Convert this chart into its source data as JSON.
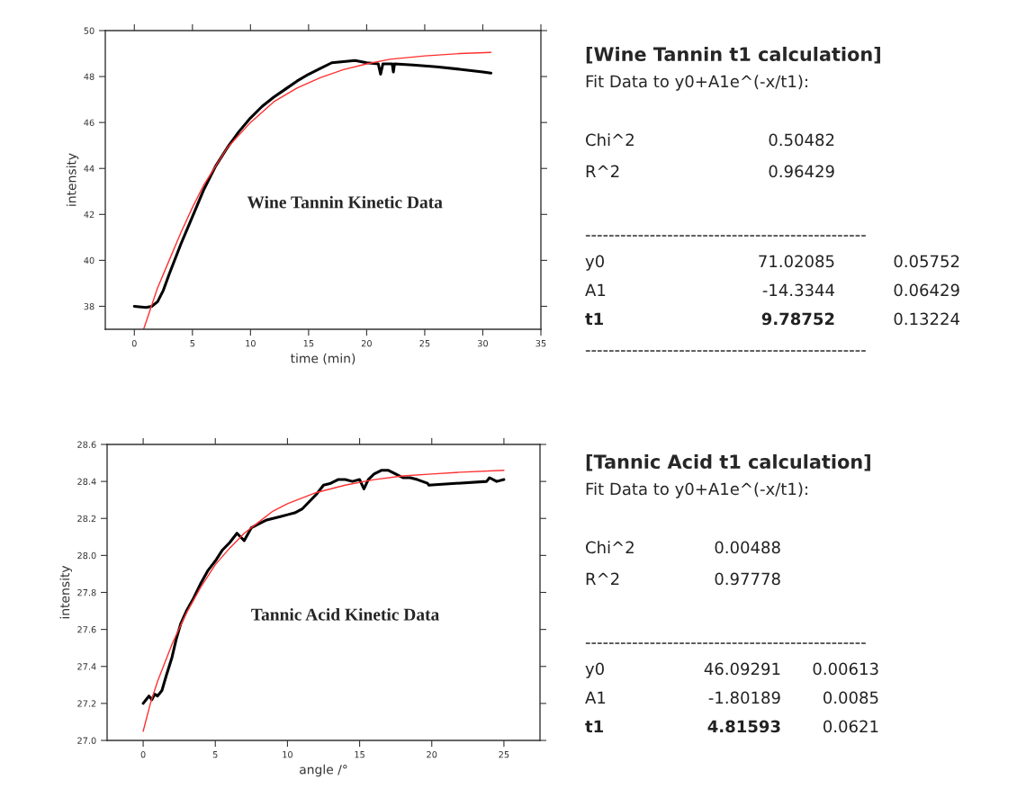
{
  "chart_data": [
    {
      "type": "line",
      "xlabel": "time (min)",
      "ylabel": "intensity",
      "xlim": [
        -2.5,
        35
      ],
      "ylim": [
        37,
        50
      ],
      "xticks": [
        0,
        5,
        10,
        15,
        20,
        25,
        30,
        35
      ],
      "yticks": [
        38,
        40,
        42,
        44,
        46,
        48,
        50
      ],
      "marker": "none",
      "line_style": "solid",
      "annotations": [
        "Wine Tannin Kinetic Data"
      ],
      "series": [
        {
          "color": "#000000",
          "x": [
            0,
            1,
            1.5,
            2,
            2.5,
            3,
            4,
            5,
            6,
            7,
            8,
            9,
            10,
            11,
            12,
            13,
            14,
            15,
            16,
            17,
            18,
            19,
            20,
            21,
            21.2,
            21.4,
            22.2,
            22.3,
            22.4,
            24,
            26,
            28,
            30,
            30.7
          ],
          "values": [
            38.0,
            37.95,
            38.0,
            38.2,
            38.7,
            39.4,
            40.7,
            41.9,
            43.1,
            44.1,
            44.9,
            45.6,
            46.2,
            46.7,
            47.1,
            47.45,
            47.8,
            48.1,
            48.35,
            48.6,
            48.65,
            48.7,
            48.6,
            48.55,
            48.1,
            48.55,
            48.55,
            48.2,
            48.55,
            48.5,
            48.42,
            48.32,
            48.2,
            48.15
          ]
        },
        {
          "color": "#ff3030",
          "x": [
            0.8,
            2,
            3,
            4,
            5,
            6,
            7,
            8,
            10,
            12,
            14,
            16,
            18,
            20,
            22,
            25,
            28,
            30.7
          ],
          "values": [
            37.0,
            38.8,
            40.0,
            41.2,
            42.3,
            43.3,
            44.1,
            44.9,
            46.0,
            46.9,
            47.5,
            47.95,
            48.3,
            48.55,
            48.75,
            48.9,
            49.0,
            49.05
          ]
        }
      ]
    },
    {
      "type": "other",
      "title": "[Wine Tannin t1 calculation]",
      "subtitle": "Fit Data to y0+A1e^(-x/t1):",
      "annotations": [
        "Chi^2",
        "0.50482",
        "R^2",
        "0.96429",
        "------------------------------------------------",
        "y0",
        "71.02085",
        "0.05752",
        "A1",
        "-14.3344",
        "0.06429",
        "t1",
        "9.78752",
        "0.13224",
        "------------------------------------------------"
      ]
    },
    {
      "type": "line",
      "xlabel": "angle /°",
      "ylabel": "intensity",
      "xlim": [
        -2.5,
        27.5
      ],
      "ylim": [
        27.0,
        28.6
      ],
      "xticks": [
        0,
        5,
        10,
        15,
        20,
        25
      ],
      "yticks": [
        {
          "value": 27.0,
          "label": "27.0"
        },
        27.2,
        27.4,
        27.6,
        27.8,
        {
          "value": 28.0,
          "label": "28.0"
        },
        28.2,
        28.4,
        28.6
      ],
      "marker": "none",
      "line_style": "solid",
      "annotations": [
        "Tannic Acid Kinetic Data"
      ],
      "series": [
        {
          "color": "#000000",
          "x": [
            0,
            0.2,
            0.4,
            0.6,
            0.8,
            1.0,
            1.3,
            1.6,
            2.0,
            2.3,
            2.6,
            3.0,
            3.5,
            4.0,
            4.5,
            5.0,
            5.5,
            6.0,
            6.5,
            7.0,
            7.5,
            8.0,
            8.5,
            9.0,
            9.5,
            10.0,
            10.5,
            11.0,
            11.5,
            12.0,
            12.5,
            13.0,
            13.5,
            14.0,
            14.5,
            15.0,
            15.3,
            15.6,
            16.0,
            16.5,
            17.0,
            17.5,
            18.0,
            18.5,
            19.0,
            19.7,
            19.8,
            23.8,
            24.0,
            24.5,
            25.0
          ],
          "values": [
            27.2,
            27.22,
            27.24,
            27.22,
            27.25,
            27.24,
            27.27,
            27.35,
            27.45,
            27.55,
            27.63,
            27.7,
            27.77,
            27.85,
            27.92,
            27.97,
            28.03,
            28.07,
            28.12,
            28.08,
            28.15,
            28.17,
            28.19,
            28.2,
            28.21,
            28.22,
            28.23,
            28.25,
            28.29,
            28.33,
            28.38,
            28.39,
            28.41,
            28.41,
            28.4,
            28.41,
            28.36,
            28.41,
            28.44,
            28.46,
            28.46,
            28.44,
            28.42,
            28.42,
            28.41,
            28.39,
            28.38,
            28.4,
            28.42,
            28.4,
            28.41
          ]
        },
        {
          "color": "#ff3030",
          "x": [
            0,
            0.5,
            1,
            2,
            3,
            4,
            5,
            6,
            7,
            8,
            9,
            10,
            12,
            14,
            16,
            18,
            20,
            22,
            25
          ],
          "values": [
            27.05,
            27.2,
            27.32,
            27.52,
            27.69,
            27.83,
            27.95,
            28.04,
            28.12,
            28.18,
            28.24,
            28.28,
            28.34,
            28.38,
            28.41,
            28.43,
            28.44,
            28.45,
            28.46
          ]
        }
      ]
    },
    {
      "type": "other",
      "title": "[Tannic Acid t1 calculation]",
      "subtitle": "Fit Data to y0+A1e^(-x/t1):",
      "annotations": [
        "Chi^2",
        "0.00488",
        "R^2",
        "0.97778",
        "------------------------------------------------",
        "y0",
        "46.09291",
        "0.00613",
        "A1",
        "-1.80189",
        "0.0085",
        "t1",
        "4.81593",
        "0.0621"
      ]
    }
  ]
}
